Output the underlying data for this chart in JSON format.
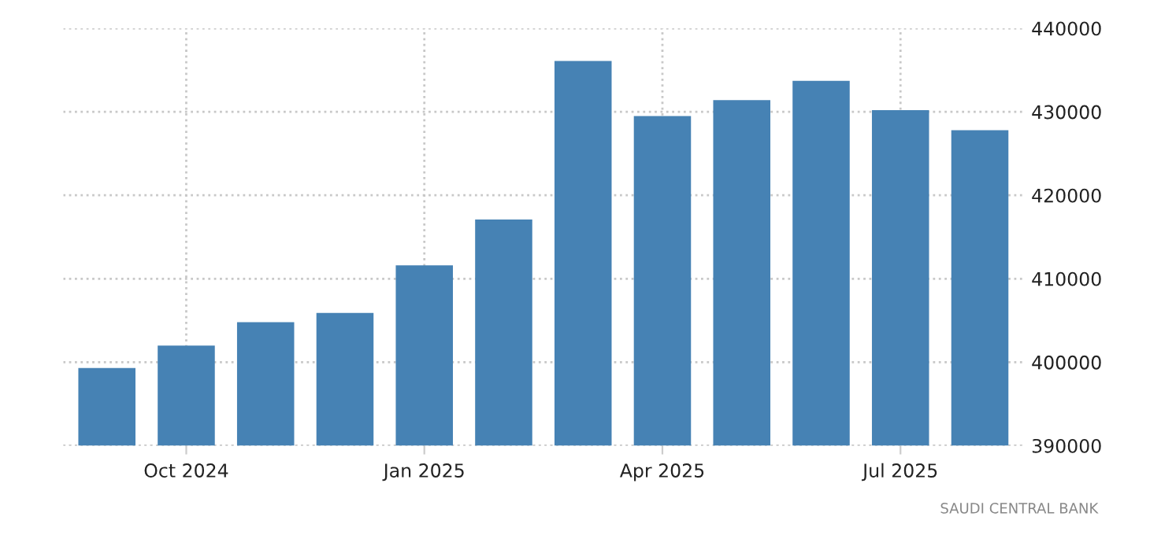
{
  "chart_data": {
    "type": "bar",
    "categories": [
      null,
      "Oct 2024",
      null,
      null,
      "Jan 2025",
      null,
      null,
      "Apr 2025",
      null,
      null,
      "Jul 2025",
      null
    ],
    "values": [
      399300,
      402000,
      404800,
      405900,
      411600,
      417100,
      436100,
      429500,
      431400,
      433700,
      430200,
      427800
    ],
    "color": "#4682b4",
    "ylim": [
      390000,
      440000
    ],
    "yticks": [
      390000,
      400000,
      410000,
      420000,
      430000,
      440000
    ],
    "grid": true,
    "annotations": [
      "SAUDI CENTRAL BANK"
    ]
  }
}
